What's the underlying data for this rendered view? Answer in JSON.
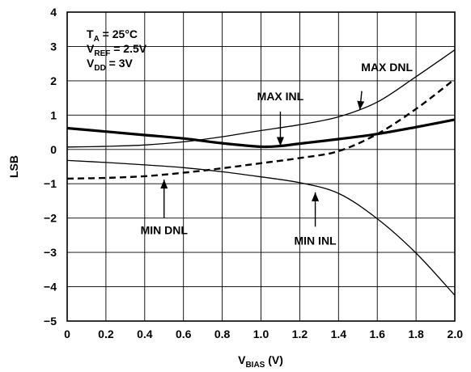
{
  "chart_data": {
    "type": "line",
    "xlabel": "V",
    "xlabel_sub": "BIAS",
    "xlabel_unit": " (V)",
    "ylabel": "LSB",
    "xlim": [
      0,
      2.0
    ],
    "ylim": [
      -5,
      4
    ],
    "x_ticks": [
      "0",
      "0.2",
      "0.4",
      "0.6",
      "0.8",
      "1.0",
      "1.2",
      "1.4",
      "1.6",
      "1.8",
      "2.0"
    ],
    "y_ticks": [
      "4",
      "3",
      "2",
      "1",
      "0",
      "−1",
      "−2",
      "−3",
      "−4",
      "−5"
    ],
    "grid": true,
    "conditions": [
      {
        "main": "T",
        "sub": "A",
        "rest": " = 25°C"
      },
      {
        "main": "V",
        "sub": "REF",
        "rest": " = 2.5V"
      },
      {
        "main": "V",
        "sub": "DD",
        "rest": " = 3V"
      }
    ],
    "series": [
      {
        "name": "MAX DNL",
        "style": "thin",
        "x": [
          0,
          0.2,
          0.4,
          0.6,
          0.8,
          1.0,
          1.2,
          1.4,
          1.6,
          1.8,
          2.0
        ],
        "y": [
          0.07,
          0.09,
          0.13,
          0.22,
          0.37,
          0.55,
          0.72,
          0.95,
          1.38,
          2.12,
          2.9
        ]
      },
      {
        "name": "MAX INL",
        "style": "thick",
        "x": [
          0,
          0.2,
          0.4,
          0.6,
          0.8,
          1.0,
          1.1,
          1.2,
          1.4,
          1.6,
          1.8,
          2.0
        ],
        "y": [
          0.62,
          0.52,
          0.42,
          0.32,
          0.18,
          0.08,
          0.1,
          0.17,
          0.3,
          0.45,
          0.65,
          0.87
        ]
      },
      {
        "name": "DNL",
        "style": "dashed",
        "x": [
          0,
          0.2,
          0.4,
          0.6,
          0.8,
          1.0,
          1.2,
          1.4,
          1.6,
          1.8,
          2.0
        ],
        "y": [
          -0.85,
          -0.83,
          -0.78,
          -0.68,
          -0.55,
          -0.4,
          -0.25,
          -0.05,
          0.45,
          1.18,
          2.05
        ]
      },
      {
        "name": "MIN INL",
        "style": "thin",
        "x": [
          0,
          0.2,
          0.4,
          0.6,
          0.8,
          1.0,
          1.2,
          1.4,
          1.6,
          1.8,
          2.0
        ],
        "y": [
          -0.32,
          -0.38,
          -0.45,
          -0.53,
          -0.65,
          -0.8,
          -0.97,
          -1.28,
          -2.02,
          -3.02,
          -4.25
        ]
      }
    ],
    "annotations": [
      {
        "text": "MAX DNL",
        "x": 1.65,
        "y": 2.4,
        "arrow_from": [
          1.52,
          1.7
        ],
        "arrow_to": [
          1.51,
          1.15
        ]
      },
      {
        "text": "MAX INL",
        "x": 1.1,
        "y": 1.55,
        "arrow_from": [
          1.1,
          1.1
        ],
        "arrow_to": [
          1.1,
          0.1
        ]
      },
      {
        "text": "MIN DNL",
        "x": 0.5,
        "y": -2.35,
        "arrow_from": [
          0.5,
          -2.0
        ],
        "arrow_to": [
          0.5,
          -0.88
        ]
      },
      {
        "text": "MIN INL",
        "x": 1.28,
        "y": -2.65,
        "arrow_from": [
          1.28,
          -2.25
        ],
        "arrow_to": [
          1.28,
          -1.25
        ]
      }
    ]
  }
}
